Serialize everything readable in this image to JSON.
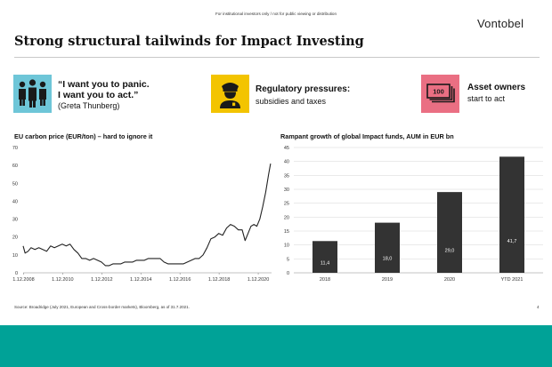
{
  "header": {
    "disclaimer": "For institutional investors only / not for public viewing or distribution",
    "brand": "Vontobel",
    "title": "Strong structural tailwinds for Impact Investing"
  },
  "highlights": [
    {
      "icon": "crowd-icon",
      "color": "#6ec6d8",
      "line1": "“I want you to panic.",
      "line2": "I want you to act.”",
      "line3": "(Greta Thunberg)"
    },
    {
      "icon": "police-officer-icon",
      "color": "#f3c400",
      "line1": "Regulatory pressures:",
      "line2": "subsidies and taxes"
    },
    {
      "icon": "banknotes-icon",
      "color": "#ea6f83",
      "banknote_text": "100",
      "line1": "Asset owners",
      "line2": "start to act"
    }
  ],
  "chart_data": [
    {
      "type": "line",
      "title": "EU carbon price (EUR/ton) – hard to ignore it",
      "x_ticks": [
        "1.12.2008",
        "1.12.2010",
        "1.12.2012",
        "1.12.2014",
        "1.12.2016",
        "1.12.2018",
        "1.12.2020"
      ],
      "ylim": [
        0,
        70
      ],
      "y_ticks": [
        0,
        10,
        20,
        30,
        40,
        50,
        60,
        70
      ],
      "grid": false,
      "series": [
        {
          "color": "#222222",
          "x": [
            2008.9,
            2009.0,
            2009.15,
            2009.3,
            2009.5,
            2009.7,
            2009.9,
            2010.1,
            2010.3,
            2010.5,
            2010.7,
            2010.9,
            2011.1,
            2011.3,
            2011.5,
            2011.7,
            2011.9,
            2012.1,
            2012.3,
            2012.5,
            2012.7,
            2012.9,
            2013.1,
            2013.3,
            2013.5,
            2013.7,
            2013.9,
            2014.1,
            2014.3,
            2014.5,
            2014.7,
            2014.9,
            2015.1,
            2015.3,
            2015.5,
            2015.7,
            2015.9,
            2016.1,
            2016.3,
            2016.5,
            2016.7,
            2016.9,
            2017.1,
            2017.3,
            2017.5,
            2017.7,
            2017.9,
            2018.1,
            2018.3,
            2018.5,
            2018.7,
            2018.9,
            2019.1,
            2019.3,
            2019.5,
            2019.7,
            2019.9,
            2020.1,
            2020.25,
            2020.4,
            2020.55,
            2020.7,
            2020.85,
            2021.0,
            2021.15,
            2021.3,
            2021.45,
            2021.55
          ],
          "y": [
            15,
            11,
            12,
            14,
            13,
            14,
            13,
            12,
            15,
            14,
            15,
            16,
            15,
            16,
            13,
            11,
            8,
            8,
            7,
            8,
            7,
            6,
            4,
            4,
            5,
            5,
            5,
            6,
            6,
            6,
            7,
            7,
            7,
            8,
            8,
            8,
            8,
            6,
            5,
            5,
            5,
            5,
            5,
            6,
            7,
            8,
            8,
            10,
            14,
            19,
            20,
            22,
            21,
            25,
            27,
            26,
            24,
            24,
            18,
            22,
            26,
            27,
            26,
            30,
            37,
            45,
            55,
            61
          ]
        }
      ]
    },
    {
      "type": "bar",
      "title": "Rampant growth of global Impact funds, AUM in EUR bn",
      "categories": [
        "2018",
        "2019",
        "2020",
        "YTD 2021"
      ],
      "values": [
        11.4,
        18.0,
        29.0,
        41.7
      ],
      "value_labels": [
        "11,4",
        "18,0",
        "29,0",
        "41,7"
      ],
      "ylim": [
        0,
        45
      ],
      "y_ticks": [
        0,
        5,
        10,
        15,
        20,
        25,
        30,
        35,
        40,
        45
      ],
      "bar_color": "#333333",
      "grid": true
    }
  ],
  "footer": {
    "source": "Source: Broadridge (July 2021, European and Cross-border markets), Bloomberg, as of 31.7.2021.",
    "page_number": "4",
    "band_color": "#00a297"
  }
}
